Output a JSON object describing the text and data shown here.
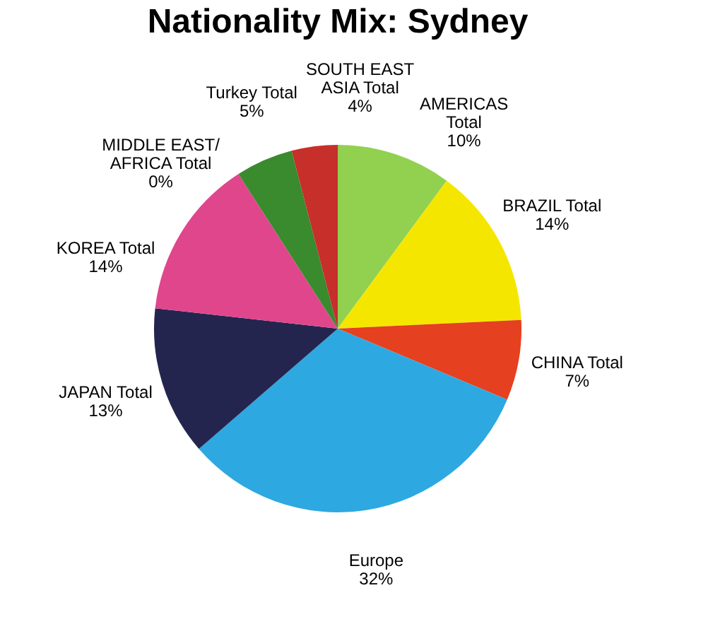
{
  "chart_data": {
    "type": "pie",
    "title": "Nationality Mix: Sydney",
    "categories": [
      "AMERICAS Total",
      "BRAZIL Total",
      "CHINA Total",
      "Europe",
      "JAPAN Total",
      "KOREA Total",
      "MIDDLE EAST/ AFRICA Total",
      "Turkey Total",
      "SOUTH EAST ASIA Total"
    ],
    "values": [
      10,
      14,
      7,
      32,
      13,
      14,
      0,
      5,
      4
    ],
    "colors": [
      "#92d050",
      "#f5e600",
      "#e5401f",
      "#2ea8e0",
      "#24254f",
      "#e0468c",
      "#d4c24a",
      "#3a8a2e",
      "#c62f2a"
    ],
    "value_labels": [
      "10%",
      "14%",
      "7%",
      "32%",
      "13%",
      "14%",
      "0%",
      "5%",
      "4%"
    ],
    "legend": false
  }
}
